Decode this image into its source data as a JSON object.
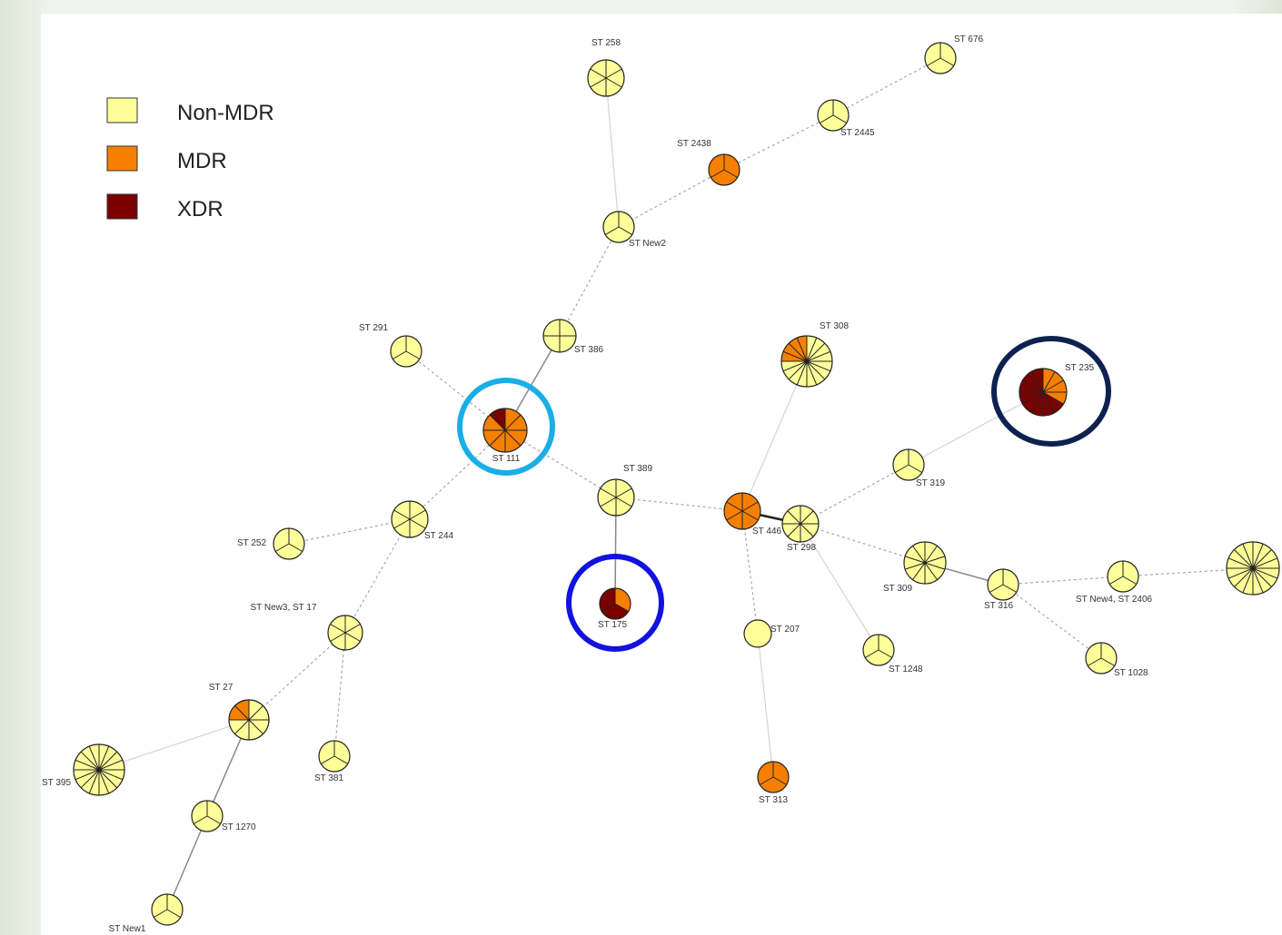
{
  "legend": [
    {
      "label": "Non-MDR",
      "color": "#ffff99"
    },
    {
      "label": "MDR",
      "color": "#f77f00"
    },
    {
      "label": "XDR",
      "color": "#7a0000"
    }
  ],
  "nodes": [
    {
      "label": "ST 258",
      "counts": [
        6,
        0,
        0
      ]
    },
    {
      "label": "ST 676",
      "counts": [
        3,
        0,
        0
      ]
    },
    {
      "label": "ST 2445",
      "counts": [
        3,
        0,
        0
      ]
    },
    {
      "label": "ST 2438",
      "counts": [
        0,
        3,
        0
      ]
    },
    {
      "label": "ST New2",
      "counts": [
        3,
        0,
        0
      ]
    },
    {
      "label": "ST 386",
      "counts": [
        4,
        0,
        0
      ]
    },
    {
      "label": "ST 291",
      "counts": [
        3,
        0,
        0
      ]
    },
    {
      "label": "ST 111",
      "counts": [
        0,
        7,
        1
      ]
    },
    {
      "label": "ST 389",
      "counts": [
        6,
        0,
        0
      ]
    },
    {
      "label": "ST 175",
      "counts": [
        0,
        1,
        2
      ]
    },
    {
      "label": "ST 244",
      "counts": [
        6,
        0,
        0
      ]
    },
    {
      "label": "ST 252",
      "counts": [
        3,
        0,
        0
      ]
    },
    {
      "label": "ST New3, ST 17",
      "counts": [
        6,
        0,
        0
      ]
    },
    {
      "label": "ST 27",
      "counts": [
        6,
        2,
        0
      ]
    },
    {
      "label": "ST 395",
      "counts": [
        16,
        0,
        0
      ]
    },
    {
      "label": "ST 381",
      "counts": [
        3,
        0,
        0
      ]
    },
    {
      "label": "ST 1270",
      "counts": [
        3,
        0,
        0
      ]
    },
    {
      "label": "ST New1",
      "counts": [
        3,
        0,
        0
      ]
    },
    {
      "label": "ST 308",
      "counts": [
        12,
        4,
        0
      ]
    },
    {
      "label": "ST 446",
      "counts": [
        0,
        6,
        0
      ]
    },
    {
      "label": "ST 298",
      "counts": [
        8,
        0,
        0
      ]
    },
    {
      "label": "ST 319",
      "counts": [
        3,
        0,
        0
      ]
    },
    {
      "label": "ST 235",
      "counts": [
        0,
        4,
        8
      ]
    },
    {
      "label": "ST 207",
      "counts": [
        1,
        0,
        0
      ]
    },
    {
      "label": "ST 313",
      "counts": [
        0,
        3,
        0
      ]
    },
    {
      "label": "ST 1248",
      "counts": [
        3,
        0,
        0
      ]
    },
    {
      "label": "ST 309",
      "counts": [
        10,
        0,
        0
      ]
    },
    {
      "label": "ST 316",
      "counts": [
        3,
        0,
        0
      ]
    },
    {
      "label": "ST New4, ST 2406",
      "counts": [
        3,
        0,
        0
      ]
    },
    {
      "label": "ST 1028",
      "counts": [
        3,
        0,
        0
      ]
    },
    {
      "label": null,
      "counts": [
        16,
        0,
        0
      ]
    }
  ]
}
